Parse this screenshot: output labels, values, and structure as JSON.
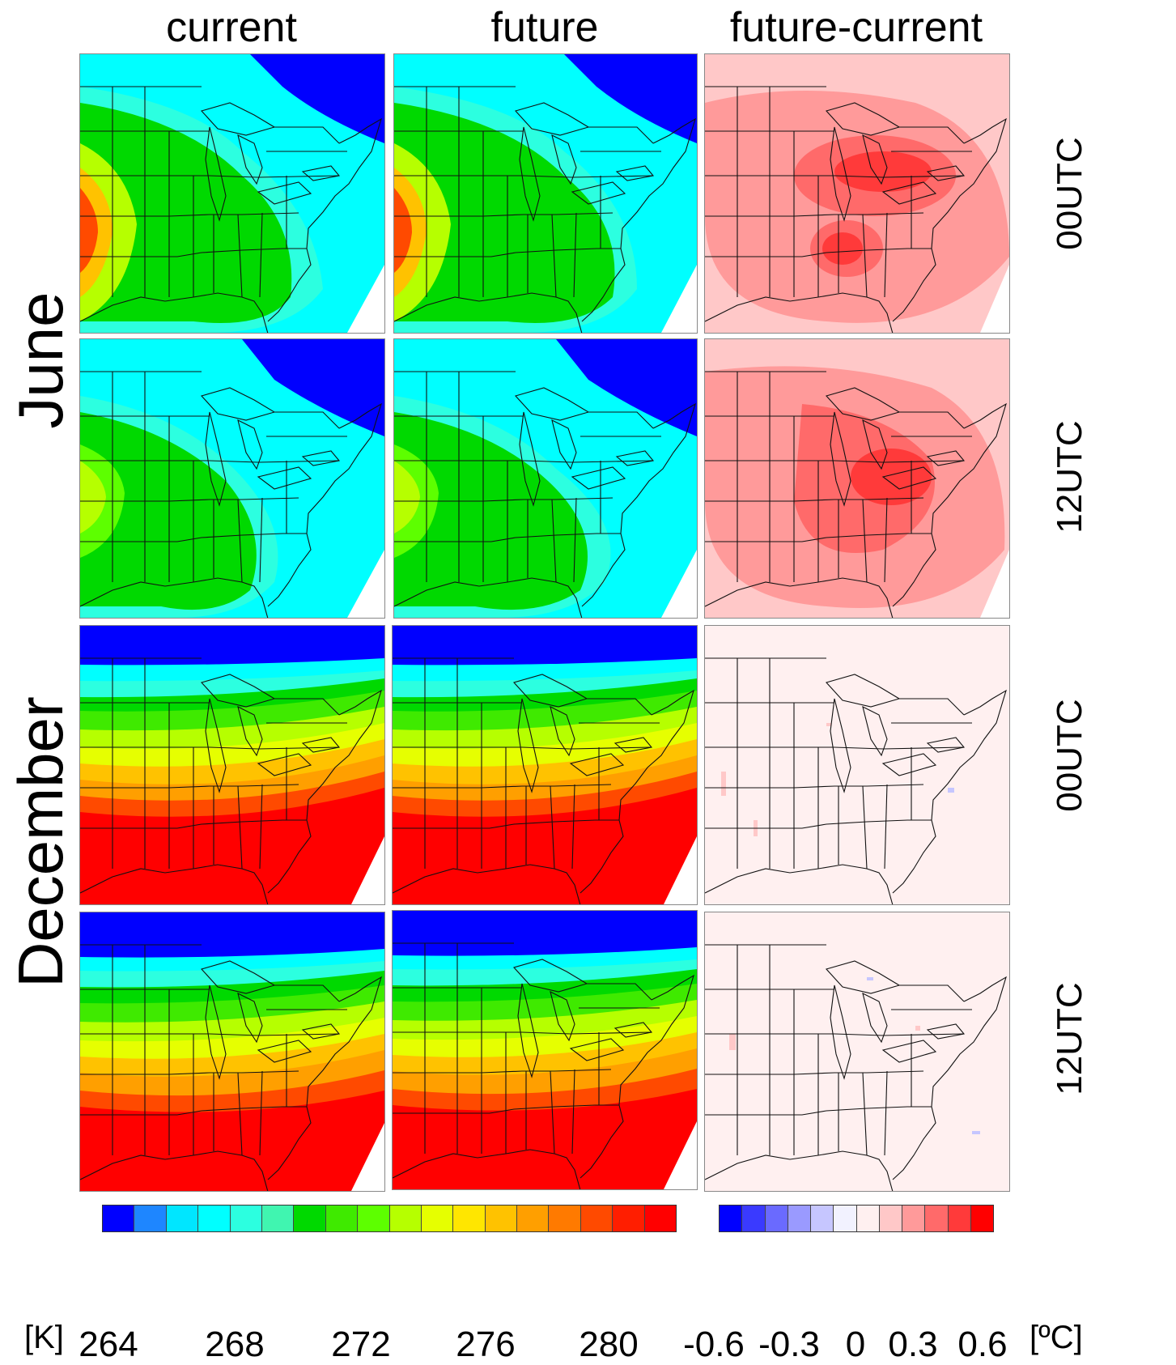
{
  "columns": [
    "current",
    "future",
    "future-current"
  ],
  "months": [
    "June",
    "December"
  ],
  "hours": [
    "00UTC",
    "12UTC",
    "00UTC",
    "12UTC"
  ],
  "colorbar_left": {
    "unit": "[K]",
    "ticks": [
      "264",
      "268",
      "272",
      "276",
      "280"
    ],
    "colors": [
      "#0000ff",
      "#1e86ff",
      "#00e6ff",
      "#00ffff",
      "#2cffe0",
      "#40f5b0",
      "#00d900",
      "#3fea00",
      "#5dff00",
      "#b6ff00",
      "#e6ff00",
      "#ffe600",
      "#ffc200",
      "#ff9f00",
      "#ff7a00",
      "#ff4a00",
      "#ff1e00",
      "#ff0000"
    ]
  },
  "colorbar_right": {
    "unit": "[ºC]",
    "ticks": [
      "-0.6",
      "-0.3",
      "0",
      "0.3",
      "0.6"
    ],
    "colors": [
      "#0000ff",
      "#3a3aff",
      "#6a6aff",
      "#9a9aff",
      "#c6c6ff",
      "#f2f2ff",
      "#fff0f0",
      "#ffc8c8",
      "#ff9a9a",
      "#ff6a6a",
      "#ff3a3a",
      "#ff0000"
    ]
  },
  "icons": {
    "map": "us-east-map-icon"
  }
}
